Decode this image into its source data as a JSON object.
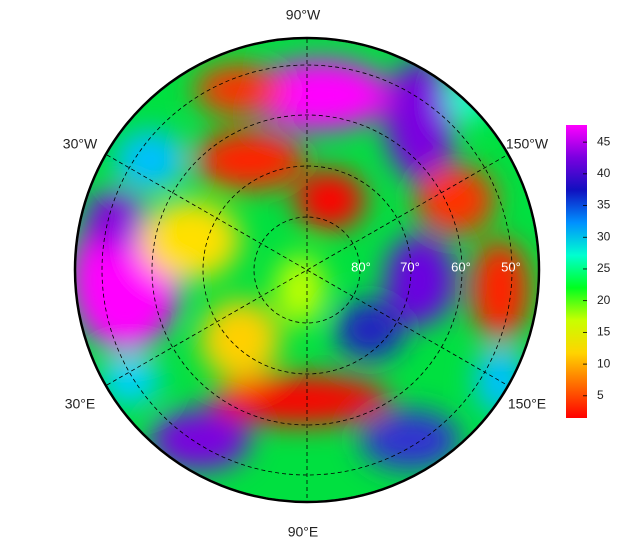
{
  "map": {
    "longitude_labels": {
      "top": "90°W",
      "upper_left": "30°W",
      "upper_right": "150°W",
      "lower_left": "30°E",
      "lower_right": "150°E",
      "bottom": "90°E"
    },
    "latitude_labels": [
      "80°",
      "70°",
      "60°",
      "50°"
    ]
  },
  "colorbar": {
    "lim": [
      1.5,
      47.7
    ],
    "ticks": [
      5,
      10,
      15,
      20,
      25,
      30,
      35,
      40,
      45
    ],
    "colors": [
      "#ff0000",
      "#ff6a00",
      "#ffd400",
      "#c8ff00",
      "#00ff20",
      "#00ffd0",
      "#0090ff",
      "#1010c0",
      "#7a00e0",
      "#ff00ff"
    ]
  }
}
